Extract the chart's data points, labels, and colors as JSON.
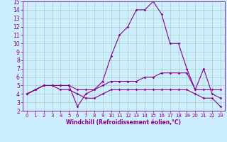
{
  "xlabel": "Windchill (Refroidissement éolien,°C)",
  "bg_color": "#cceeff",
  "grid_color": "#aaccbb",
  "line_color": "#880088",
  "xlim": [
    -0.5,
    23.5
  ],
  "ylim": [
    2,
    15
  ],
  "xticks": [
    0,
    1,
    2,
    3,
    4,
    5,
    6,
    7,
    8,
    9,
    10,
    11,
    12,
    13,
    14,
    15,
    16,
    17,
    18,
    19,
    20,
    21,
    22,
    23
  ],
  "yticks": [
    2,
    3,
    4,
    5,
    6,
    7,
    8,
    9,
    10,
    11,
    12,
    13,
    14,
    15
  ],
  "line1_x": [
    0,
    1,
    2,
    3,
    4,
    5,
    6,
    7,
    8,
    9,
    10,
    11,
    12,
    13,
    14,
    15,
    16,
    17,
    18,
    19,
    20,
    21,
    22,
    23
  ],
  "line1_y": [
    4.0,
    4.5,
    5.0,
    5.0,
    5.0,
    5.0,
    2.5,
    4.0,
    4.5,
    5.5,
    8.5,
    11.0,
    12.0,
    14.0,
    14.0,
    15.0,
    13.5,
    10.0,
    10.0,
    7.0,
    4.5,
    7.0,
    4.0,
    3.5
  ],
  "line2_x": [
    0,
    1,
    2,
    3,
    4,
    5,
    6,
    7,
    8,
    9,
    10,
    11,
    12,
    13,
    14,
    15,
    16,
    17,
    18,
    19,
    20,
    21,
    22,
    23
  ],
  "line2_y": [
    4.0,
    4.5,
    5.0,
    5.0,
    5.0,
    5.0,
    4.5,
    4.5,
    4.5,
    5.0,
    5.5,
    5.5,
    5.5,
    5.5,
    6.0,
    6.0,
    6.5,
    6.5,
    6.5,
    6.5,
    4.5,
    4.5,
    4.5,
    4.5
  ],
  "line3_x": [
    0,
    1,
    2,
    3,
    4,
    5,
    6,
    7,
    8,
    9,
    10,
    11,
    12,
    13,
    14,
    15,
    16,
    17,
    18,
    19,
    20,
    21,
    22,
    23
  ],
  "line3_y": [
    4.0,
    4.5,
    5.0,
    5.0,
    4.5,
    4.5,
    4.0,
    3.5,
    3.5,
    4.0,
    4.5,
    4.5,
    4.5,
    4.5,
    4.5,
    4.5,
    4.5,
    4.5,
    4.5,
    4.5,
    4.0,
    3.5,
    3.5,
    2.5
  ],
  "marker": "D",
  "marker_size": 1.8,
  "line_width": 0.8,
  "xlabel_fontsize": 5.5,
  "tick_fontsize_x": 5.0,
  "tick_fontsize_y": 5.5
}
